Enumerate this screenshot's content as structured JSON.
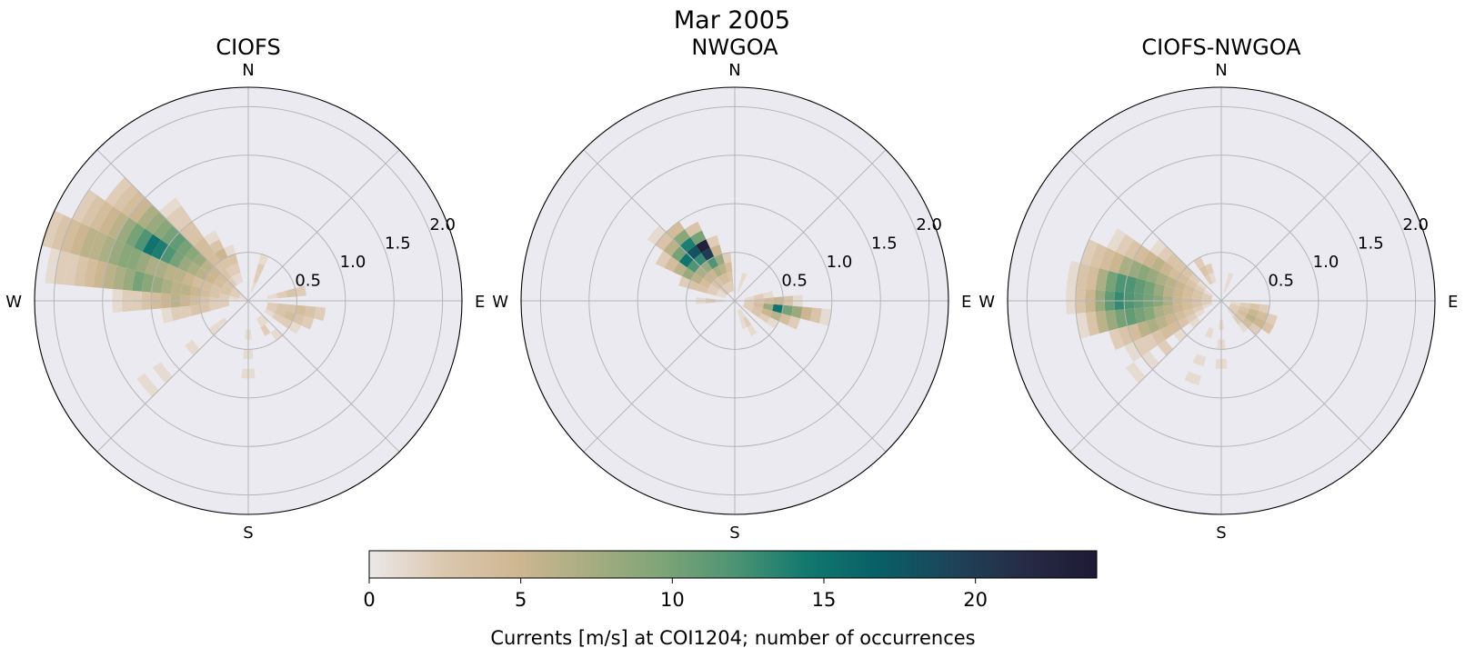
{
  "figure": {
    "title": "Mar 2005"
  },
  "compass_labels": {
    "n": "N",
    "e": "E",
    "s": "S",
    "w": "W"
  },
  "radial_ticks": [
    "0.5",
    "1.0",
    "1.5",
    "2.0"
  ],
  "colorbar": {
    "label": "Currents [m/s] at COI1204; number of occurrences",
    "ticks": [
      "0",
      "5",
      "10",
      "15",
      "20"
    ],
    "range": [
      0,
      24
    ],
    "colors": [
      "#ebe8e8",
      "#dcc8b0",
      "#cfb792",
      "#a9ad82",
      "#7fa577",
      "#4f9474",
      "#12796f",
      "#085f66",
      "#1d4459",
      "#262b45",
      "#1e1a35"
    ]
  },
  "chart_data": [
    {
      "type": "heatmap",
      "subtype": "polar-rose",
      "title": "CIOFS",
      "rlim": [
        0,
        2.2
      ],
      "rticks": [
        0.5,
        1.0,
        1.5,
        2.0
      ],
      "theta_direction": "compass (N up, clockwise)",
      "direction_bin_deg": 10,
      "speed_bin": 0.1,
      "cells": [
        {
          "dir": 290,
          "speed": [
            0.0,
            0.1,
            0.2,
            0.3,
            0.4,
            0.5,
            0.6,
            0.7,
            0.8,
            0.9,
            1.0,
            1.1,
            1.2,
            1.3,
            1.4,
            1.5,
            1.6,
            1.7,
            1.8,
            1.9,
            2.0,
            2.1
          ],
          "count": [
            1,
            2,
            3,
            3,
            4,
            4,
            5,
            6,
            6,
            7,
            7,
            8,
            9,
            9,
            8,
            7,
            6,
            6,
            5,
            4,
            3,
            2
          ]
        },
        {
          "dir": 300,
          "speed": [
            0.0,
            0.1,
            0.2,
            0.3,
            0.4,
            0.5,
            0.6,
            0.7,
            0.8,
            0.9,
            1.0,
            1.1,
            1.2,
            1.3,
            1.4,
            1.5,
            1.6,
            1.7,
            1.8,
            1.9
          ],
          "count": [
            1,
            2,
            3,
            4,
            5,
            6,
            7,
            8,
            10,
            12,
            14,
            15,
            12,
            10,
            8,
            6,
            5,
            4,
            3,
            2
          ]
        },
        {
          "dir": 310,
          "speed": [
            0.0,
            0.1,
            0.2,
            0.3,
            0.4,
            0.5,
            0.6,
            0.7,
            0.8,
            0.9,
            1.0,
            1.1,
            1.2,
            1.3,
            1.4,
            1.5,
            1.6,
            1.7
          ],
          "count": [
            1,
            2,
            3,
            4,
            5,
            6,
            8,
            9,
            10,
            11,
            10,
            9,
            8,
            7,
            5,
            4,
            3,
            2
          ]
        },
        {
          "dir": 280,
          "speed": [
            0.1,
            0.2,
            0.3,
            0.4,
            0.5,
            0.6,
            0.7,
            0.8,
            0.9,
            1.0,
            1.1,
            1.2,
            1.3,
            1.4,
            1.5,
            1.6,
            1.7,
            1.8,
            1.9,
            2.0
          ],
          "count": [
            1,
            2,
            3,
            4,
            5,
            6,
            6,
            7,
            8,
            9,
            10,
            8,
            7,
            6,
            5,
            4,
            3,
            2,
            2,
            1
          ]
        },
        {
          "dir": 320,
          "speed": [
            0.2,
            0.3,
            0.4,
            0.5,
            0.6,
            0.7,
            0.8,
            0.9,
            1.0,
            1.1,
            1.2
          ],
          "count": [
            2,
            3,
            3,
            4,
            4,
            4,
            3,
            3,
            2,
            2,
            1
          ]
        },
        {
          "dir": 270,
          "speed": [
            0.2,
            0.3,
            0.4,
            0.5,
            0.6,
            0.7,
            0.8,
            0.9,
            1.0,
            1.1,
            1.2,
            1.3
          ],
          "count": [
            2,
            2,
            3,
            4,
            5,
            6,
            5,
            4,
            3,
            2,
            2,
            1
          ]
        },
        {
          "dir": 260,
          "speed": [
            0.2,
            0.3,
            0.4,
            0.5,
            0.6,
            0.7,
            0.8
          ],
          "count": [
            2,
            2,
            3,
            3,
            2,
            2,
            1
          ]
        },
        {
          "dir": 230,
          "speed": [
            0.3,
            0.4,
            0.7,
            1.1,
            1.3
          ],
          "count": [
            1,
            1,
            1,
            1,
            1
          ]
        },
        {
          "dir": 180,
          "speed": [
            0.3,
            0.5,
            0.7
          ],
          "count": [
            1,
            1,
            1
          ]
        },
        {
          "dir": 110,
          "speed": [
            0.2,
            0.3,
            0.4,
            0.5,
            0.6
          ],
          "count": [
            2,
            3,
            4,
            3,
            2
          ]
        },
        {
          "dir": 100,
          "speed": [
            0.2,
            0.3,
            0.4,
            0.5,
            0.6,
            0.7
          ],
          "count": [
            2,
            3,
            3,
            4,
            3,
            2
          ]
        },
        {
          "dir": 80,
          "speed": [
            0.2,
            0.3,
            0.4,
            0.5
          ],
          "count": [
            1,
            2,
            3,
            2
          ]
        },
        {
          "dir": 120,
          "speed": [
            0.2,
            0.3,
            0.4,
            0.5
          ],
          "count": [
            1,
            2,
            2,
            1
          ]
        },
        {
          "dir": 140,
          "speed": [
            0.2,
            0.4
          ],
          "count": [
            1,
            1
          ]
        },
        {
          "dir": 20,
          "speed": [
            0.1,
            0.2,
            0.3,
            0.4
          ],
          "count": [
            1,
            2,
            2,
            1
          ]
        },
        {
          "dir": 340,
          "speed": [
            0.2,
            0.3,
            0.4,
            0.5
          ],
          "count": [
            1,
            2,
            3,
            1
          ]
        },
        {
          "dir": 330,
          "speed": [
            0.2,
            0.3,
            0.4,
            0.5,
            0.6,
            0.7
          ],
          "count": [
            1,
            2,
            3,
            5,
            3,
            1
          ]
        },
        {
          "dir": 150,
          "speed": [
            0.2,
            0.3
          ],
          "count": [
            1,
            2
          ]
        }
      ]
    },
    {
      "type": "heatmap",
      "subtype": "polar-rose",
      "title": "NWGOA",
      "rlim": [
        0,
        2.2
      ],
      "rticks": [
        0.5,
        1.0,
        1.5,
        2.0
      ],
      "theta_direction": "compass (N up, clockwise)",
      "direction_bin_deg": 10,
      "speed_bin": 0.1,
      "cells": [
        {
          "dir": 320,
          "speed": [
            0.1,
            0.2,
            0.3,
            0.4,
            0.5,
            0.6,
            0.7,
            0.8,
            0.9
          ],
          "count": [
            2,
            3,
            5,
            8,
            13,
            18,
            14,
            9,
            4
          ]
        },
        {
          "dir": 330,
          "speed": [
            0.1,
            0.2,
            0.3,
            0.4,
            0.5,
            0.6,
            0.7,
            0.8
          ],
          "count": [
            2,
            4,
            7,
            12,
            20,
            23,
            10,
            3
          ]
        },
        {
          "dir": 310,
          "speed": [
            0.1,
            0.2,
            0.3,
            0.4,
            0.5,
            0.6,
            0.7,
            0.8,
            0.9,
            1.0
          ],
          "count": [
            2,
            3,
            5,
            7,
            12,
            15,
            10,
            6,
            3,
            1
          ]
        },
        {
          "dir": 300,
          "speed": [
            0.1,
            0.2,
            0.3,
            0.4,
            0.5,
            0.6,
            0.7,
            0.8
          ],
          "count": [
            1,
            2,
            4,
            6,
            8,
            6,
            4,
            2
          ]
        },
        {
          "dir": 340,
          "speed": [
            0.1,
            0.2,
            0.3,
            0.4,
            0.5,
            0.6
          ],
          "count": [
            2,
            4,
            6,
            8,
            5,
            2
          ]
        },
        {
          "dir": 290,
          "speed": [
            0.1,
            0.2,
            0.3,
            0.4,
            0.5
          ],
          "count": [
            1,
            2,
            3,
            3,
            2
          ]
        },
        {
          "dir": 350,
          "speed": [
            0.1,
            0.2,
            0.3,
            0.4
          ],
          "count": [
            2,
            3,
            4,
            2
          ]
        },
        {
          "dir": 100,
          "speed": [
            0.1,
            0.2,
            0.3,
            0.4,
            0.5,
            0.6,
            0.7,
            0.8,
            0.9
          ],
          "count": [
            2,
            4,
            8,
            15,
            10,
            8,
            5,
            3,
            1
          ]
        },
        {
          "dir": 110,
          "speed": [
            0.1,
            0.2,
            0.3,
            0.4,
            0.5,
            0.6
          ],
          "count": [
            2,
            3,
            5,
            6,
            4,
            2
          ]
        },
        {
          "dir": 90,
          "speed": [
            0.1,
            0.2,
            0.3,
            0.4,
            0.5,
            0.6
          ],
          "count": [
            2,
            3,
            4,
            5,
            3,
            1
          ]
        },
        {
          "dir": 120,
          "speed": [
            0.1,
            0.2,
            0.3,
            0.4
          ],
          "count": [
            2,
            3,
            2,
            1
          ]
        },
        {
          "dir": 80,
          "speed": [
            0.1,
            0.2,
            0.3
          ],
          "count": [
            1,
            2,
            1
          ]
        },
        {
          "dir": 150,
          "speed": [
            0.1,
            0.2,
            0.3
          ],
          "count": [
            1,
            2,
            1
          ]
        },
        {
          "dir": 160,
          "speed": [
            0.1,
            0.2
          ],
          "count": [
            1,
            1
          ]
        },
        {
          "dir": 270,
          "speed": [
            0.1,
            0.2,
            0.3
          ],
          "count": [
            1,
            2,
            1
          ]
        },
        {
          "dir": 20,
          "speed": [
            0.1,
            0.2
          ],
          "count": [
            1,
            1
          ]
        }
      ]
    },
    {
      "type": "heatmap",
      "subtype": "polar-rose",
      "title": "CIOFS-NWGOA",
      "rlim": [
        0,
        2.2
      ],
      "rticks": [
        0.5,
        1.0,
        1.5,
        2.0
      ],
      "theta_direction": "compass (N up, clockwise)",
      "direction_bin_deg": 10,
      "speed_bin": 0.1,
      "cells": [
        {
          "dir": 270,
          "speed": [
            0.1,
            0.2,
            0.3,
            0.4,
            0.5,
            0.6,
            0.7,
            0.8,
            0.9,
            1.0,
            1.1,
            1.2,
            1.3,
            1.4,
            1.5
          ],
          "count": [
            2,
            3,
            4,
            5,
            7,
            9,
            10,
            11,
            12,
            13,
            11,
            8,
            5,
            3,
            1
          ]
        },
        {
          "dir": 280,
          "speed": [
            0.1,
            0.2,
            0.3,
            0.4,
            0.5,
            0.6,
            0.7,
            0.8,
            0.9,
            1.0,
            1.1,
            1.2,
            1.3,
            1.4,
            1.5
          ],
          "count": [
            2,
            3,
            4,
            5,
            6,
            8,
            10,
            11,
            12,
            12,
            10,
            7,
            4,
            3,
            1
          ]
        },
        {
          "dir": 260,
          "speed": [
            0.1,
            0.2,
            0.3,
            0.4,
            0.5,
            0.6,
            0.7,
            0.8,
            0.9,
            1.0,
            1.1,
            1.2,
            1.3,
            1.4
          ],
          "count": [
            2,
            3,
            4,
            5,
            6,
            7,
            9,
            10,
            11,
            10,
            8,
            6,
            3,
            1
          ]
        },
        {
          "dir": 290,
          "speed": [
            0.1,
            0.2,
            0.3,
            0.4,
            0.5,
            0.6,
            0.7,
            0.8,
            0.9,
            1.0,
            1.1,
            1.2,
            1.3,
            1.4
          ],
          "count": [
            2,
            3,
            4,
            5,
            6,
            7,
            8,
            9,
            8,
            7,
            5,
            4,
            3,
            2
          ]
        },
        {
          "dir": 250,
          "speed": [
            0.1,
            0.2,
            0.3,
            0.4,
            0.5,
            0.6,
            0.7,
            0.8,
            0.9,
            1.0,
            1.1
          ],
          "count": [
            1,
            2,
            3,
            4,
            5,
            6,
            7,
            6,
            4,
            3,
            2
          ]
        },
        {
          "dir": 300,
          "speed": [
            0.1,
            0.2,
            0.3,
            0.4,
            0.5,
            0.6,
            0.7,
            0.8,
            0.9,
            1.0,
            1.1,
            1.2
          ],
          "count": [
            1,
            2,
            3,
            4,
            4,
            5,
            6,
            5,
            4,
            3,
            2,
            1
          ]
        },
        {
          "dir": 240,
          "speed": [
            0.2,
            0.3,
            0.4,
            0.5,
            0.6,
            0.7,
            0.8,
            0.9,
            1.0
          ],
          "count": [
            1,
            2,
            3,
            4,
            4,
            3,
            2,
            2,
            1
          ]
        },
        {
          "dir": 310,
          "speed": [
            0.2,
            0.3,
            0.4,
            0.5,
            0.6,
            0.7,
            0.8
          ],
          "count": [
            1,
            2,
            3,
            3,
            3,
            2,
            1
          ]
        },
        {
          "dir": 230,
          "speed": [
            0.3,
            0.5,
            0.7,
            0.9,
            1.1
          ],
          "count": [
            1,
            1,
            2,
            1,
            1
          ]
        },
        {
          "dir": 120,
          "speed": [
            0.1,
            0.2,
            0.3,
            0.4,
            0.5
          ],
          "count": [
            2,
            4,
            6,
            5,
            3
          ]
        },
        {
          "dir": 110,
          "speed": [
            0.1,
            0.2,
            0.3,
            0.4,
            0.5
          ],
          "count": [
            2,
            3,
            5,
            4,
            2
          ]
        },
        {
          "dir": 130,
          "speed": [
            0.1,
            0.2,
            0.3,
            0.4
          ],
          "count": [
            2,
            3,
            4,
            2
          ]
        },
        {
          "dir": 100,
          "speed": [
            0.1,
            0.2,
            0.3,
            0.4
          ],
          "count": [
            1,
            2,
            3,
            2
          ]
        },
        {
          "dir": 140,
          "speed": [
            0.1,
            0.2,
            0.3
          ],
          "count": [
            1,
            2,
            1
          ]
        },
        {
          "dir": 330,
          "speed": [
            0.2,
            0.3,
            0.4
          ],
          "count": [
            2,
            3,
            2
          ]
        },
        {
          "dir": 340,
          "speed": [
            0.2,
            0.3
          ],
          "count": [
            1,
            2
          ]
        },
        {
          "dir": 20,
          "speed": [
            0.1,
            0.2
          ],
          "count": [
            1,
            1
          ]
        },
        {
          "dir": 180,
          "speed": [
            0.2,
            0.4,
            0.6
          ],
          "count": [
            1,
            1,
            1
          ]
        },
        {
          "dir": 200,
          "speed": [
            0.3,
            0.6,
            0.8
          ],
          "count": [
            1,
            1,
            1
          ]
        }
      ]
    }
  ]
}
